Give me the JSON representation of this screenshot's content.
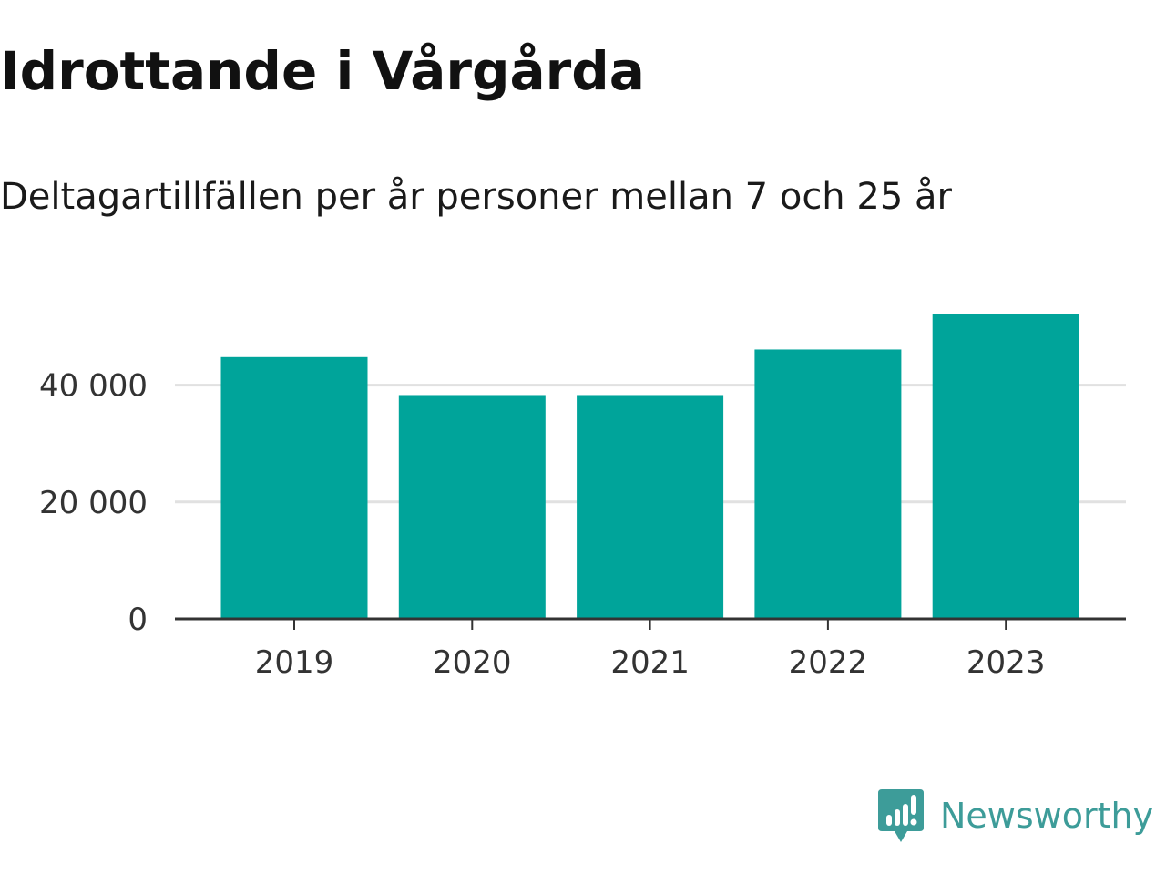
{
  "chart_data": {
    "type": "bar",
    "title": "Idrottande i Vårgårda",
    "subtitle": "Deltagartillfällen per år personer mellan 7 och 25 år",
    "categories": [
      "2019",
      "2020",
      "2021",
      "2022",
      "2023"
    ],
    "values": [
      44800,
      38300,
      38300,
      46100,
      52100
    ],
    "ylim": [
      0,
      52100
    ],
    "yticks": [
      0,
      20000,
      40000
    ],
    "ytick_labels": [
      "0",
      "20 000",
      "40 000"
    ],
    "xlabel": "",
    "ylabel": "",
    "grid": true,
    "legend": "none",
    "bar_color": "#00a49a",
    "grid_color": "#e1e1e1",
    "axis_color": "#333333"
  },
  "brand": {
    "name": "Newsworthy",
    "icon": "newsworthy-logo-icon",
    "color": "#3d9c99"
  }
}
